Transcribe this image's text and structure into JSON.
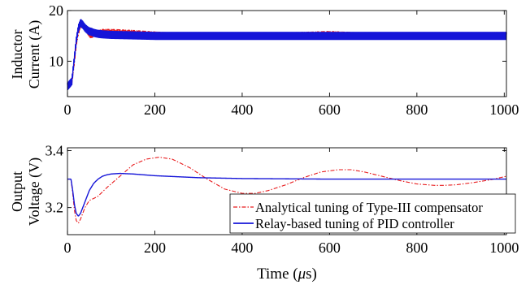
{
  "chart_data": [
    {
      "type": "line",
      "ylabel_line1": "Inductor",
      "ylabel_line2": "Current (A)",
      "xlabel": "",
      "xlim": [
        0,
        1005
      ],
      "ylim": [
        3,
        20
      ],
      "xticks": [
        "0",
        "200",
        "400",
        "600",
        "800",
        "1000"
      ],
      "yticks": [
        "10",
        "20"
      ],
      "series": [
        {
          "color": "#e8191b",
          "dash": "dashdot",
          "ripple": 0.3,
          "x": [
            0,
            5,
            10,
            15,
            20,
            25,
            30,
            35,
            40,
            45,
            50,
            55,
            60,
            70,
            80,
            100,
            150,
            200,
            300,
            400,
            500,
            600,
            700,
            800,
            900,
            1000
          ],
          "y": [
            5.2,
            5.3,
            5.6,
            9,
            13,
            15.5,
            16.8,
            17,
            16.6,
            15.8,
            15,
            14.8,
            15.2,
            15.8,
            16,
            16,
            15.8,
            15.5,
            15,
            14.8,
            15.3,
            15.6,
            15.2,
            15,
            15.3,
            15.4
          ]
        },
        {
          "color": "#1515d8",
          "dash": "solid",
          "ripple": 0.7,
          "x": [
            0,
            5,
            10,
            15,
            20,
            25,
            30,
            35,
            40,
            45,
            50,
            55,
            60,
            70,
            80,
            100,
            150,
            200,
            300,
            400,
            500,
            600,
            700,
            800,
            900,
            1000
          ],
          "y": [
            5,
            5.5,
            6,
            10,
            14,
            16.5,
            17.6,
            17.2,
            16.6,
            16.2,
            15.9,
            15.8,
            15.6,
            15.4,
            15.3,
            15.2,
            15.1,
            15,
            15,
            15,
            15,
            15,
            15,
            15,
            15,
            15
          ]
        }
      ]
    },
    {
      "type": "line",
      "ylabel_line1": "Output",
      "ylabel_line2": "Voltage (V)",
      "xlabel_prefix": "Time (",
      "xlabel_unit": "μ",
      "xlabel_suffix": "s)",
      "xlim": [
        0,
        1005
      ],
      "ylim": [
        3.105,
        3.41
      ],
      "xticks": [
        "0",
        "200",
        "400",
        "600",
        "800",
        "1000"
      ],
      "yticks": [
        "3.2",
        "3.4"
      ],
      "legend_position": "lower-right",
      "series": [
        {
          "name": "Analytical tuning of Type-III compensator",
          "color": "#e8191b",
          "dash": "dashdot",
          "ripple": 0,
          "x": [
            0,
            8,
            12,
            16,
            20,
            25,
            30,
            40,
            50,
            60,
            70,
            90,
            120,
            150,
            180,
            210,
            240,
            280,
            320,
            360,
            400,
            430,
            460,
            500,
            540,
            580,
            620,
            650,
            680,
            720,
            760,
            800,
            840,
            860,
            890,
            930,
            970,
            1005
          ],
          "y": [
            3.3,
            3.3,
            3.25,
            3.19,
            3.155,
            3.145,
            3.16,
            3.2,
            3.225,
            3.232,
            3.24,
            3.27,
            3.31,
            3.35,
            3.37,
            3.377,
            3.37,
            3.34,
            3.3,
            3.265,
            3.25,
            3.25,
            3.26,
            3.28,
            3.305,
            3.325,
            3.333,
            3.333,
            3.325,
            3.31,
            3.295,
            3.283,
            3.278,
            3.278,
            3.28,
            3.288,
            3.298,
            3.31
          ]
        },
        {
          "name": "Relay-based tuning of PID controller",
          "color": "#1515d8",
          "dash": "solid",
          "ripple": 0,
          "x": [
            0,
            8,
            12,
            16,
            20,
            25,
            30,
            40,
            50,
            60,
            70,
            80,
            90,
            100,
            120,
            150,
            200,
            300,
            400,
            500,
            600,
            700,
            800,
            900,
            1005
          ],
          "y": [
            3.3,
            3.3,
            3.26,
            3.21,
            3.18,
            3.17,
            3.18,
            3.22,
            3.26,
            3.285,
            3.3,
            3.31,
            3.315,
            3.318,
            3.32,
            3.318,
            3.312,
            3.305,
            3.302,
            3.301,
            3.3,
            3.3,
            3.3,
            3.3,
            3.3
          ]
        }
      ]
    }
  ]
}
